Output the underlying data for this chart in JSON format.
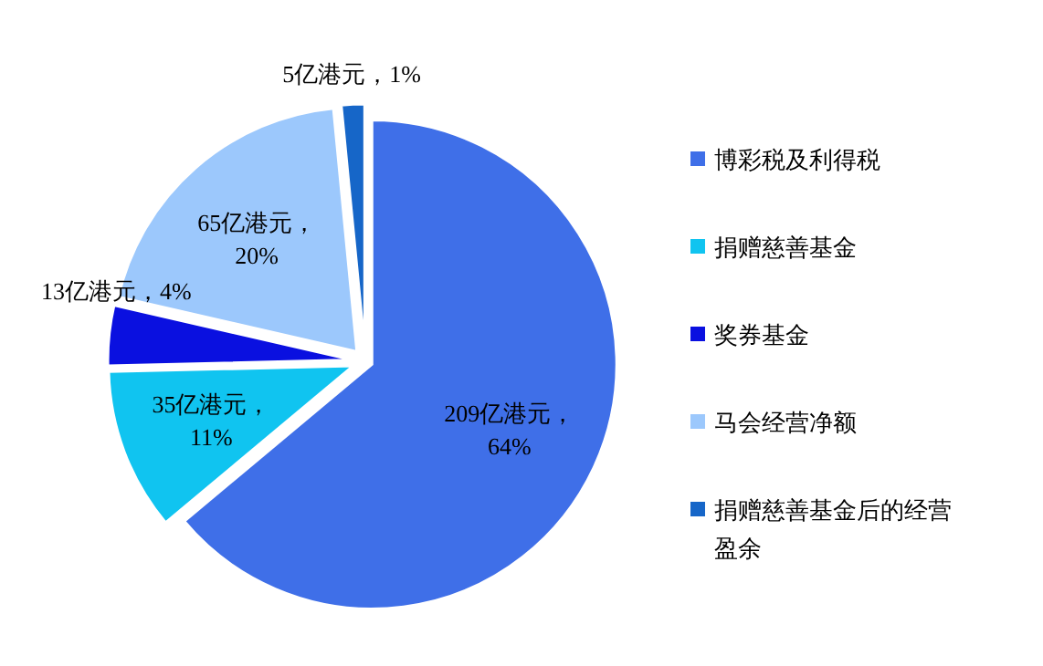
{
  "chart_data": {
    "type": "pie",
    "categories": [
      "博彩税及利得税",
      "捐赠慈善基金",
      "奖券基金",
      "马会经营净额",
      "捐赠慈善基金后的经营盈余"
    ],
    "values": [
      209,
      35,
      13,
      65,
      5
    ],
    "colors": [
      "#3f6fe8",
      "#10c4f0",
      "#0a10e0",
      "#9cc8fc",
      "#1666c8"
    ],
    "value_labels": [
      "209亿港元，64%",
      "35亿港元，11%",
      "13亿港元，4%",
      "65亿港元，20%",
      "5亿港元，1%"
    ],
    "legend": "right"
  }
}
